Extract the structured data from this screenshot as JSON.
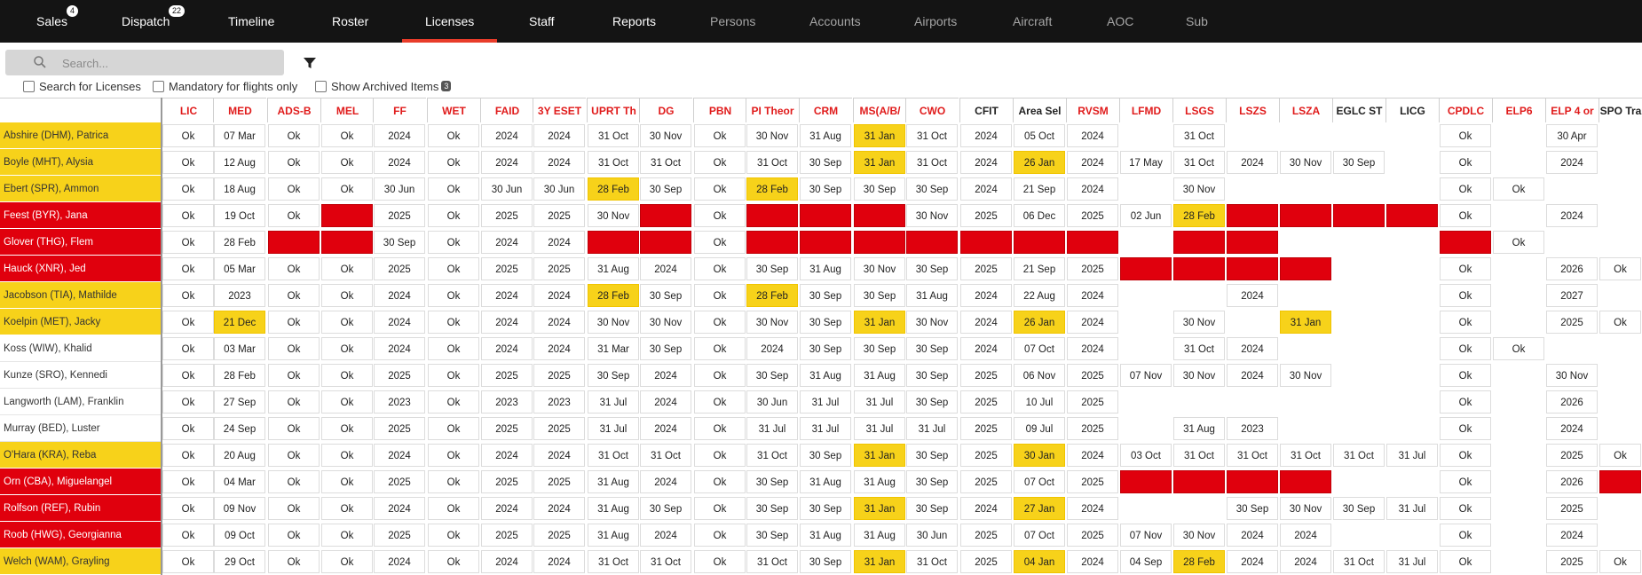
{
  "nav": {
    "items": [
      {
        "label": "Sales",
        "badge": "4",
        "muted": false
      },
      {
        "label": "Dispatch",
        "badge": "22",
        "muted": false
      },
      {
        "label": "Timeline",
        "badge": "",
        "muted": false
      },
      {
        "label": "Roster",
        "badge": "",
        "muted": false
      },
      {
        "label": "Licenses",
        "badge": "",
        "muted": false,
        "active": true
      },
      {
        "label": "Staff",
        "badge": "",
        "muted": false
      },
      {
        "label": "Reports",
        "badge": "",
        "muted": false
      },
      {
        "label": "Persons",
        "badge": "",
        "muted": true
      },
      {
        "label": "Accounts",
        "badge": "",
        "muted": true
      },
      {
        "label": "Airports",
        "badge": "",
        "muted": true
      },
      {
        "label": "Aircraft",
        "badge": "",
        "muted": true
      },
      {
        "label": "AOC",
        "badge": "",
        "muted": true
      },
      {
        "label": "Sub",
        "badge": "",
        "muted": true
      }
    ],
    "active_color": "#e83c2a"
  },
  "search": {
    "placeholder": "Search...",
    "value": ""
  },
  "filters": {
    "search_licenses": "Search for Licenses",
    "mandatory_only": "Mandatory for flights only",
    "show_archived": "Show Archived Items",
    "archived_count": "3"
  },
  "colors": {
    "warning": "#f7d21a",
    "expired": "#e0000d"
  },
  "columns": [
    {
      "label": "LIC",
      "color": "red"
    },
    {
      "label": "MED",
      "color": "red"
    },
    {
      "label": "ADS-B",
      "color": "red"
    },
    {
      "label": "MEL",
      "color": "red"
    },
    {
      "label": "FF",
      "color": "red"
    },
    {
      "label": "WET",
      "color": "red"
    },
    {
      "label": "FAID",
      "color": "red"
    },
    {
      "label": "3Y ESET",
      "color": "red"
    },
    {
      "label": "UPRT Th",
      "color": "red"
    },
    {
      "label": "DG",
      "color": "red"
    },
    {
      "label": "PBN",
      "color": "red"
    },
    {
      "label": "PI Theor",
      "color": "red"
    },
    {
      "label": "CRM",
      "color": "red"
    },
    {
      "label": "MS(A/B/",
      "color": "red"
    },
    {
      "label": "CWO",
      "color": "red"
    },
    {
      "label": "CFIT",
      "color": "black"
    },
    {
      "label": "Area Sel",
      "color": "black"
    },
    {
      "label": "RVSM",
      "color": "red"
    },
    {
      "label": "LFMD",
      "color": "red"
    },
    {
      "label": "LSGS",
      "color": "red"
    },
    {
      "label": "LSZS",
      "color": "red"
    },
    {
      "label": "LSZA",
      "color": "red"
    },
    {
      "label": "EGLC ST",
      "color": "black"
    },
    {
      "label": "LICG",
      "color": "black"
    },
    {
      "label": "CPDLC",
      "color": "red"
    },
    {
      "label": "ELP6",
      "color": "red"
    },
    {
      "label": "ELP 4 or",
      "color": "red"
    },
    {
      "label": "SPO Tra",
      "color": "black"
    }
  ],
  "rows": [
    {
      "name": "Abshire (DHM), Patrica",
      "status": "yellow",
      "cells": [
        "Ok",
        "07 Mar",
        "Ok",
        "Ok",
        "2024",
        "Ok",
        "2024",
        "2024",
        "31 Oct",
        "30 Nov",
        "Ok",
        "30 Nov",
        "31 Aug",
        "31 Jan|y",
        "31 Oct",
        "2024",
        "05 Oct",
        "2024",
        "",
        "31 Oct",
        "",
        "",
        "",
        "",
        "Ok",
        "",
        "30 Apr",
        ""
      ]
    },
    {
      "name": "Boyle (MHT), Alysia",
      "status": "yellow",
      "cells": [
        "Ok",
        "12 Aug",
        "Ok",
        "Ok",
        "2024",
        "Ok",
        "2024",
        "2024",
        "31 Oct",
        "31 Oct",
        "Ok",
        "31 Oct",
        "30 Sep",
        "31 Jan|y",
        "31 Oct",
        "2024",
        "26 Jan|y",
        "2024",
        "17 May",
        "31 Oct",
        "2024",
        "30 Nov",
        "30 Sep",
        "",
        "Ok",
        "",
        "2024",
        ""
      ]
    },
    {
      "name": "Ebert (SPR), Ammon",
      "status": "yellow",
      "cells": [
        "Ok",
        "18 Aug",
        "Ok",
        "Ok",
        "30 Jun",
        "Ok",
        "30 Jun",
        "30 Jun",
        "28 Feb|y",
        "30 Sep",
        "Ok",
        "28 Feb|y",
        "30 Sep",
        "30 Sep",
        "30 Sep",
        "2024",
        "21 Sep",
        "2024",
        "",
        "30 Nov",
        "",
        "",
        "",
        "",
        "Ok",
        "Ok",
        "",
        ""
      ]
    },
    {
      "name": "Feest (BYR), Jana",
      "status": "red",
      "cells": [
        "Ok",
        "19 Oct",
        "Ok",
        "|r",
        "2025",
        "Ok",
        "2025",
        "2025",
        "30 Nov",
        "|r",
        "Ok",
        "|r",
        "|r",
        "|r",
        "30 Nov",
        "2025",
        "06 Dec",
        "2025",
        "02 Jun",
        "28 Feb|y",
        "|r",
        "|r",
        "|r",
        "|r",
        "Ok",
        "",
        "2024",
        ""
      ]
    },
    {
      "name": "Glover (THG), Flem",
      "status": "red",
      "cells": [
        "Ok",
        "28 Feb",
        "|r",
        "|r",
        "30 Sep",
        "Ok",
        "2024",
        "2024",
        "|r",
        "|r",
        "Ok",
        "|r",
        "|r",
        "|r",
        "|r",
        "|r",
        "|r",
        "|r",
        "",
        "|r",
        "|r",
        "",
        "",
        "",
        "|r",
        "Ok",
        "",
        ""
      ]
    },
    {
      "name": "Hauck (XNR), Jed",
      "status": "red",
      "cells": [
        "Ok",
        "05 Mar",
        "Ok",
        "Ok",
        "2025",
        "Ok",
        "2025",
        "2025",
        "31 Aug",
        "2024",
        "Ok",
        "30 Sep",
        "31 Aug",
        "30 Nov",
        "30 Sep",
        "2025",
        "21 Sep",
        "2025",
        "|r",
        "|r",
        "|r",
        "|r",
        "",
        "",
        "Ok",
        "",
        "2026",
        "Ok"
      ]
    },
    {
      "name": "Jacobson (TIA), Mathilde",
      "status": "yellow",
      "cells": [
        "Ok",
        "2023",
        "Ok",
        "Ok",
        "2024",
        "Ok",
        "2024",
        "2024",
        "28 Feb|y",
        "30 Sep",
        "Ok",
        "28 Feb|y",
        "30 Sep",
        "30 Sep",
        "31 Aug",
        "2024",
        "22 Aug",
        "2024",
        "",
        "",
        "2024",
        "",
        "",
        "",
        "Ok",
        "",
        "2027",
        ""
      ]
    },
    {
      "name": "Koelpin (MET), Jacky",
      "status": "yellow",
      "cells": [
        "Ok",
        "21 Dec|y",
        "Ok",
        "Ok",
        "2024",
        "Ok",
        "2024",
        "2024",
        "30 Nov",
        "30 Nov",
        "Ok",
        "30 Nov",
        "30 Sep",
        "31 Jan|y",
        "30 Nov",
        "2024",
        "26 Jan|y",
        "2024",
        "",
        "30 Nov",
        "",
        "31 Jan|y",
        "",
        "",
        "Ok",
        "",
        "2025",
        "Ok"
      ]
    },
    {
      "name": "Koss (WIW), Khalid",
      "status": "white",
      "cells": [
        "Ok",
        "03 Mar",
        "Ok",
        "Ok",
        "2024",
        "Ok",
        "2024",
        "2024",
        "31 Mar",
        "30 Sep",
        "Ok",
        "2024",
        "30 Sep",
        "30 Sep",
        "30 Sep",
        "2024",
        "07 Oct",
        "2024",
        "",
        "31 Oct",
        "2024",
        "",
        "",
        "",
        "Ok",
        "Ok",
        "",
        ""
      ]
    },
    {
      "name": "Kunze (SRO), Kennedi",
      "status": "white",
      "cells": [
        "Ok",
        "28 Feb",
        "Ok",
        "Ok",
        "2025",
        "Ok",
        "2025",
        "2025",
        "30 Sep",
        "2024",
        "Ok",
        "30 Sep",
        "31 Aug",
        "31 Aug",
        "30 Sep",
        "2025",
        "06 Nov",
        "2025",
        "07 Nov",
        "30 Nov",
        "2024",
        "30 Nov",
        "",
        "",
        "Ok",
        "",
        "30 Nov",
        ""
      ]
    },
    {
      "name": "Langworth (LAM), Franklin",
      "status": "white",
      "cells": [
        "Ok",
        "27 Sep",
        "Ok",
        "Ok",
        "2023",
        "Ok",
        "2023",
        "2023",
        "31 Jul",
        "2024",
        "Ok",
        "30 Jun",
        "31 Jul",
        "31 Jul",
        "30 Sep",
        "2025",
        "10 Jul",
        "2025",
        "",
        "",
        "",
        "",
        "",
        "",
        "Ok",
        "",
        "2026",
        ""
      ]
    },
    {
      "name": "Murray (BED), Luster",
      "status": "white",
      "cells": [
        "Ok",
        "24 Sep",
        "Ok",
        "Ok",
        "2025",
        "Ok",
        "2025",
        "2025",
        "31 Jul",
        "2024",
        "Ok",
        "31 Jul",
        "31 Jul",
        "31 Jul",
        "31 Jul",
        "2025",
        "09 Jul",
        "2025",
        "",
        "31 Aug",
        "2023",
        "",
        "",
        "",
        "Ok",
        "",
        "2024",
        ""
      ]
    },
    {
      "name": "O'Hara (KRA), Reba",
      "status": "yellow",
      "cells": [
        "Ok",
        "20 Aug",
        "Ok",
        "Ok",
        "2024",
        "Ok",
        "2024",
        "2024",
        "31 Oct",
        "31 Oct",
        "Ok",
        "31 Oct",
        "30 Sep",
        "31 Jan|y",
        "30 Sep",
        "2025",
        "30 Jan|y",
        "2024",
        "03 Oct",
        "31 Oct",
        "31 Oct",
        "31 Oct",
        "31 Oct",
        "31 Jul",
        "Ok",
        "",
        "2025",
        "Ok"
      ]
    },
    {
      "name": "Orn (CBA), Miguelangel",
      "status": "red",
      "cells": [
        "Ok",
        "04 Mar",
        "Ok",
        "Ok",
        "2025",
        "Ok",
        "2025",
        "2025",
        "31 Aug",
        "2024",
        "Ok",
        "30 Sep",
        "31 Aug",
        "31 Aug",
        "30 Sep",
        "2025",
        "07 Oct",
        "2025",
        "|r",
        "|r",
        "|r",
        "|r",
        "",
        "",
        "Ok",
        "",
        "2026",
        "|r"
      ]
    },
    {
      "name": "Rolfson (REF), Rubin",
      "status": "red",
      "cells": [
        "Ok",
        "09 Nov",
        "Ok",
        "Ok",
        "2024",
        "Ok",
        "2024",
        "2024",
        "31 Aug",
        "30 Sep",
        "Ok",
        "30 Sep",
        "30 Sep",
        "31 Jan|y",
        "30 Sep",
        "2024",
        "27 Jan|y",
        "2024",
        "",
        "",
        "30 Sep",
        "30 Nov",
        "30 Sep",
        "31 Jul",
        "Ok",
        "",
        "2025",
        ""
      ]
    },
    {
      "name": "Roob (HWG), Georgianna",
      "status": "red",
      "cells": [
        "Ok",
        "09 Oct",
        "Ok",
        "Ok",
        "2025",
        "Ok",
        "2025",
        "2025",
        "31 Aug",
        "2024",
        "Ok",
        "30 Sep",
        "31 Aug",
        "31 Aug",
        "30 Jun",
        "2025",
        "07 Oct",
        "2025",
        "07 Nov",
        "30 Nov",
        "2024",
        "2024",
        "",
        "",
        "Ok",
        "",
        "2024",
        ""
      ]
    },
    {
      "name": "Welch (WAM), Grayling",
      "status": "yellow",
      "cells": [
        "Ok",
        "29 Oct",
        "Ok",
        "Ok",
        "2024",
        "Ok",
        "2024",
        "2024",
        "31 Oct",
        "31 Oct",
        "Ok",
        "31 Oct",
        "30 Sep",
        "31 Jan|y",
        "31 Oct",
        "2025",
        "04 Jan|y",
        "2024",
        "04 Sep",
        "28 Feb|y",
        "2024",
        "2024",
        "31 Oct",
        "31 Jul",
        "Ok",
        "",
        "2025",
        "Ok"
      ]
    }
  ]
}
